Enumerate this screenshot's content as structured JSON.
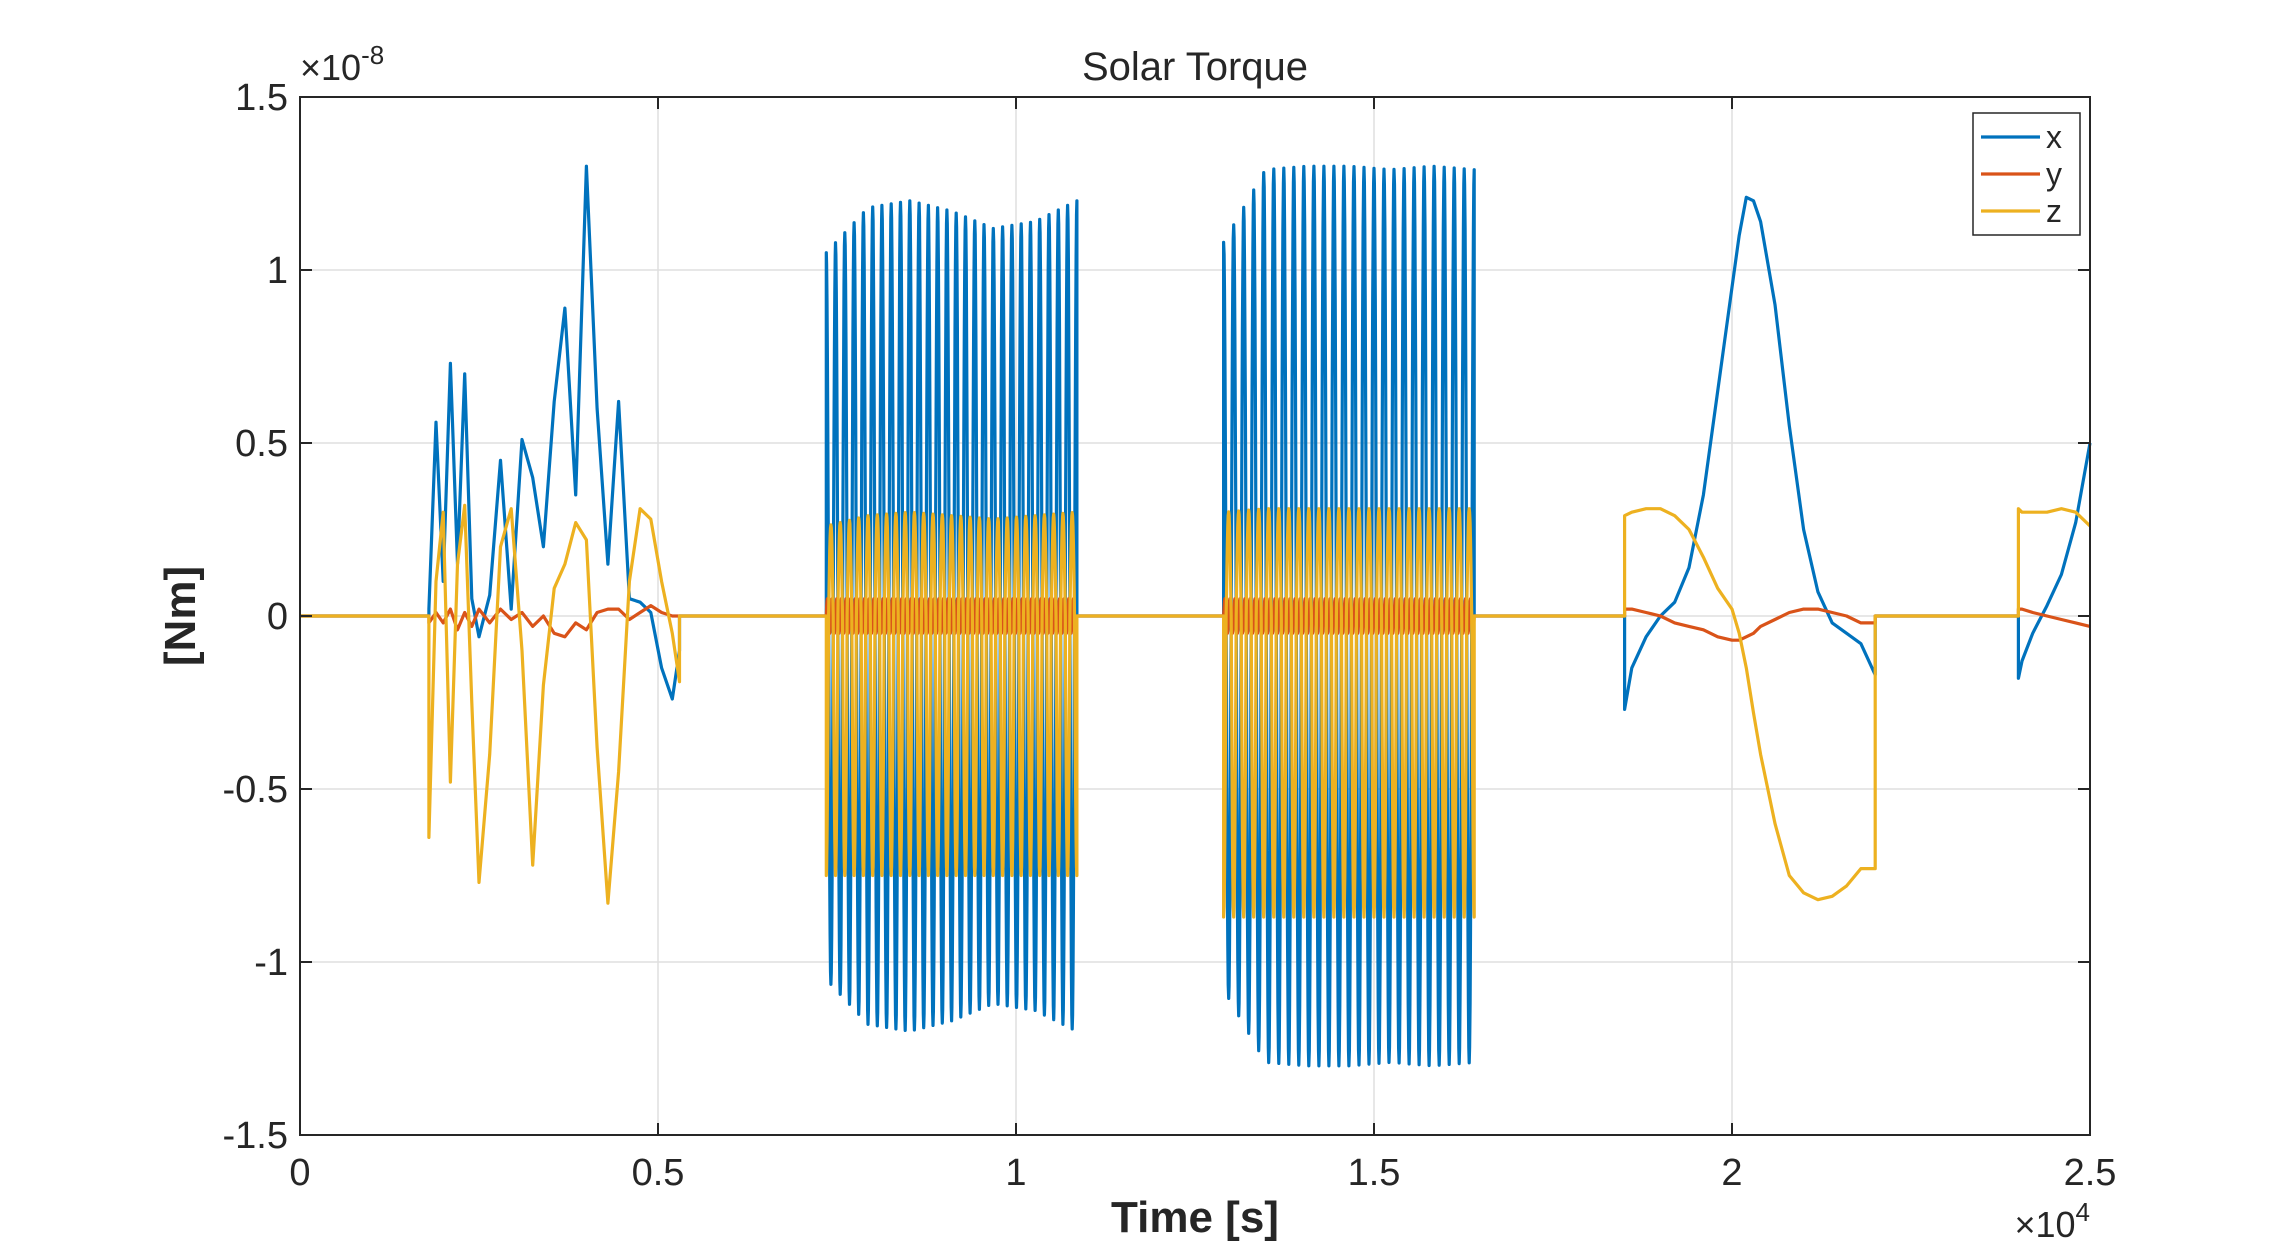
{
  "chart_data": {
    "type": "line",
    "title": "Solar Torque",
    "xlabel": "Time [s]",
    "ylabel": "[Nm]",
    "x_exponent": {
      "base": "×10",
      "power": "4"
    },
    "y_exponent": {
      "base": "×10",
      "power": "-8"
    },
    "xlim": [
      0,
      2.5
    ],
    "ylim": [
      -1.5,
      1.5
    ],
    "x_ticks": [
      0,
      0.5,
      1,
      1.5,
      2,
      2.5
    ],
    "x_tick_labels": [
      "0",
      "0.5",
      "1",
      "1.5",
      "2",
      "2.5"
    ],
    "y_ticks": [
      -1.5,
      -1,
      -0.5,
      0,
      0.5,
      1,
      1.5
    ],
    "y_tick_labels": [
      "-1.5",
      "-1",
      "-0.5",
      "0",
      "0.5",
      "1",
      "1.5"
    ],
    "grid": true,
    "legend_position": "top-right",
    "series": [
      {
        "name": "x",
        "color": "#0072BD"
      },
      {
        "name": "y",
        "color": "#D95319"
      },
      {
        "name": "z",
        "color": "#EDB120"
      }
    ],
    "segments": [
      {
        "label": "irregular",
        "x": [
          0.18,
          0.19,
          0.2,
          0.21,
          0.22,
          0.23,
          0.24,
          0.25,
          0.265,
          0.28,
          0.295,
          0.31,
          0.325,
          0.34,
          0.355,
          0.37,
          0.385,
          0.4,
          0.415,
          0.43,
          0.445,
          0.46,
          0.475,
          0.49,
          0.505,
          0.52,
          0.53
        ],
        "series_x": [
          0.02,
          0.56,
          0.1,
          0.73,
          0.15,
          0.7,
          0.05,
          -0.06,
          0.06,
          0.45,
          0.02,
          0.51,
          0.4,
          0.2,
          0.62,
          0.89,
          0.35,
          1.3,
          0.6,
          0.15,
          0.62,
          0.05,
          0.04,
          0.01,
          -0.15,
          -0.24,
          -0.1
        ],
        "series_y": [
          -0.02,
          0.01,
          -0.02,
          0.02,
          -0.04,
          0.01,
          -0.03,
          0.02,
          -0.02,
          0.02,
          -0.01,
          0.01,
          -0.03,
          0.0,
          -0.05,
          -0.06,
          -0.02,
          -0.04,
          0.01,
          0.02,
          0.02,
          -0.01,
          0.01,
          0.03,
          0.01,
          0.0,
          0.0
        ],
        "series_z": [
          -0.64,
          0.1,
          0.3,
          -0.48,
          0.15,
          0.32,
          -0.25,
          -0.77,
          -0.4,
          0.2,
          0.31,
          -0.1,
          -0.72,
          -0.2,
          0.08,
          0.15,
          0.27,
          0.22,
          -0.38,
          -0.83,
          -0.45,
          0.1,
          0.31,
          0.28,
          0.1,
          -0.05,
          -0.19
        ]
      },
      {
        "label": "oscillation-1",
        "x_start": 0.735,
        "x_end": 1.085,
        "cycles": 27,
        "x_amp": [
          1.05,
          1.18,
          1.2,
          1.17,
          1.12,
          1.14,
          1.2
        ],
        "z_amp": [
          0.26,
          0.29,
          0.3,
          0.29,
          0.28,
          0.29,
          0.3
        ],
        "z_low": -0.75,
        "y_amp": 0.05
      },
      {
        "label": "oscillation-2",
        "x_start": 1.29,
        "x_end": 1.64,
        "cycles": 25,
        "x_amp": [
          1.08,
          1.29,
          1.3,
          1.3,
          1.29,
          1.3,
          1.29
        ],
        "z_amp": [
          0.3,
          0.31,
          0.31,
          0.31,
          0.31,
          0.31,
          0.31
        ],
        "z_low": -0.87,
        "y_amp": 0.05
      },
      {
        "label": "smooth-1",
        "x": [
          1.85,
          1.86,
          1.88,
          1.9,
          1.92,
          1.94,
          1.96,
          1.98,
          2.0,
          2.01,
          2.02,
          2.03,
          2.04,
          2.06,
          2.08,
          2.1,
          2.12,
          2.14,
          2.16,
          2.18,
          2.2
        ],
        "series_x": [
          -0.27,
          -0.15,
          -0.06,
          0.0,
          0.04,
          0.14,
          0.35,
          0.65,
          0.95,
          1.1,
          1.21,
          1.2,
          1.14,
          0.9,
          0.55,
          0.25,
          0.07,
          -0.02,
          -0.05,
          -0.08,
          -0.17
        ],
        "series_y": [
          0.02,
          0.02,
          0.01,
          0.0,
          -0.02,
          -0.03,
          -0.04,
          -0.06,
          -0.07,
          -0.07,
          -0.06,
          -0.05,
          -0.03,
          -0.01,
          0.01,
          0.02,
          0.02,
          0.01,
          0.0,
          -0.02,
          -0.02
        ],
        "series_z": [
          0.29,
          0.3,
          0.31,
          0.31,
          0.29,
          0.25,
          0.17,
          0.08,
          0.02,
          -0.05,
          -0.15,
          -0.28,
          -0.4,
          -0.6,
          -0.75,
          -0.8,
          -0.82,
          -0.81,
          -0.78,
          -0.73,
          -0.73
        ]
      },
      {
        "label": "smooth-2",
        "x": [
          2.4,
          2.405,
          2.42,
          2.44,
          2.46,
          2.48,
          2.5
        ],
        "series_x": [
          -0.18,
          -0.13,
          -0.05,
          0.03,
          0.12,
          0.27,
          0.5
        ],
        "series_y": [
          0.02,
          0.02,
          0.01,
          0.0,
          -0.01,
          -0.02,
          -0.03
        ],
        "series_z": [
          0.31,
          0.3,
          0.3,
          0.3,
          0.31,
          0.3,
          0.26
        ]
      }
    ]
  }
}
